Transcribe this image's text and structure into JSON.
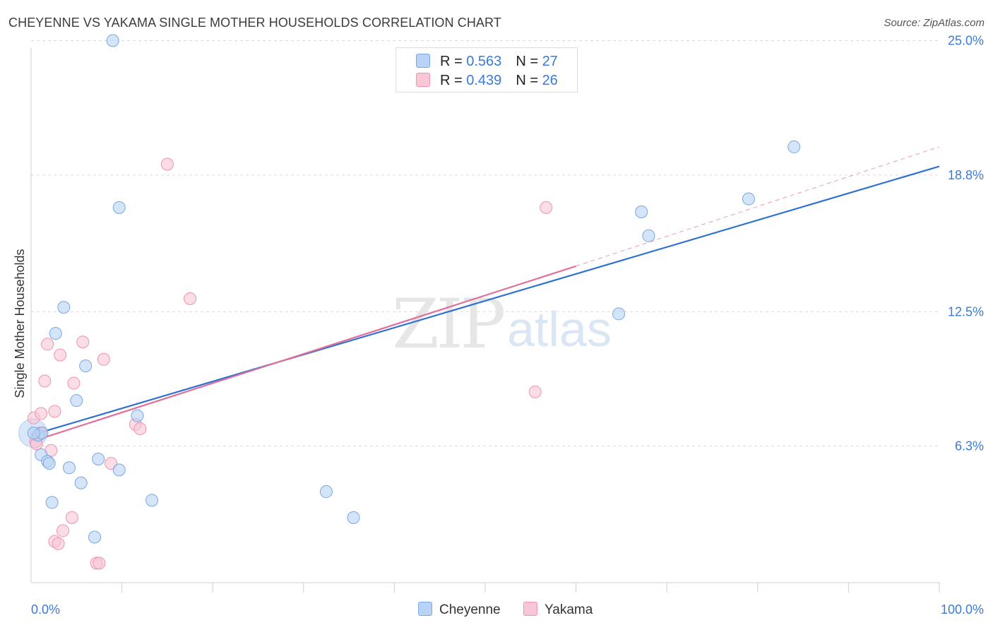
{
  "title": "CHEYENNE VS YAKAMA SINGLE MOTHER HOUSEHOLDS CORRELATION CHART",
  "source": "Source: ZipAtlas.com",
  "watermark": {
    "zip": "ZIP",
    "atlas": "atlas"
  },
  "legend": {
    "cheyenne": {
      "r_label": "R = ",
      "r_value": "0.563",
      "n_label": "N = ",
      "n_value": "27"
    },
    "yakama": {
      "r_label": "R = ",
      "r_value": "0.439",
      "n_label": "N = ",
      "n_value": "26"
    }
  },
  "colors": {
    "cheyenne_fill": "#b8d3f5",
    "cheyenne_stroke": "#7aa7e0",
    "cheyenne_line": "#2f72d0",
    "yakama_fill": "#f9c6d6",
    "yakama_stroke": "#ee93b0",
    "yakama_line": "#e0709a",
    "tick_label": "#3a7bd5",
    "grid": "#d9d9d9"
  },
  "chart_data": {
    "type": "scatter",
    "title": "CHEYENNE VS YAKAMA SINGLE MOTHER HOUSEHOLDS CORRELATION CHART",
    "xlabel": "",
    "ylabel": "Single Mother Households",
    "xlim": [
      0,
      100
    ],
    "ylim": [
      0,
      26
    ],
    "x_tick_labels": [
      "0.0%",
      "100.0%"
    ],
    "y_ticks": [
      6.3,
      12.5,
      18.8,
      25.0
    ],
    "y_tick_labels": [
      "6.3%",
      "12.5%",
      "18.8%",
      "25.0%"
    ],
    "grid": true,
    "series": [
      {
        "name": "Cheyenne",
        "points": [
          [
            0.8,
            6.8
          ],
          [
            1.2,
            6.9
          ],
          [
            1.1,
            5.9
          ],
          [
            1.8,
            5.6
          ],
          [
            2.0,
            5.5
          ],
          [
            2.3,
            3.7
          ],
          [
            2.7,
            11.5
          ],
          [
            3.6,
            12.7
          ],
          [
            4.2,
            5.3
          ],
          [
            5.0,
            8.4
          ],
          [
            5.5,
            4.6
          ],
          [
            6.0,
            10.0
          ],
          [
            7.0,
            2.1
          ],
          [
            7.4,
            5.7
          ],
          [
            9.0,
            25.0
          ],
          [
            9.7,
            5.2
          ],
          [
            9.7,
            17.3
          ],
          [
            11.7,
            7.7
          ],
          [
            13.3,
            3.8
          ],
          [
            32.5,
            4.2
          ],
          [
            35.5,
            3.0
          ],
          [
            64.7,
            12.4
          ],
          [
            67.2,
            17.1
          ],
          [
            68.0,
            16.0
          ],
          [
            79.0,
            17.7
          ],
          [
            84.0,
            20.1
          ],
          [
            0.3,
            6.9
          ]
        ],
        "trend": {
          "x": [
            0,
            100
          ],
          "y": [
            6.8,
            19.2
          ]
        }
      },
      {
        "name": "Yakama",
        "points": [
          [
            0.3,
            7.6
          ],
          [
            0.5,
            6.5
          ],
          [
            1.0,
            6.9
          ],
          [
            1.1,
            7.8
          ],
          [
            1.5,
            9.3
          ],
          [
            1.8,
            11.0
          ],
          [
            2.2,
            6.1
          ],
          [
            2.6,
            7.9
          ],
          [
            2.6,
            1.9
          ],
          [
            3.0,
            1.8
          ],
          [
            3.2,
            10.5
          ],
          [
            3.5,
            2.4
          ],
          [
            4.5,
            3.0
          ],
          [
            4.7,
            9.2
          ],
          [
            5.7,
            11.1
          ],
          [
            7.2,
            0.9
          ],
          [
            7.5,
            0.9
          ],
          [
            8.0,
            10.3
          ],
          [
            8.8,
            5.5
          ],
          [
            11.5,
            7.3
          ],
          [
            12.0,
            7.1
          ],
          [
            15.0,
            19.3
          ],
          [
            17.5,
            13.1
          ],
          [
            55.5,
            8.8
          ],
          [
            56.7,
            17.3
          ],
          [
            0.6,
            6.4
          ]
        ],
        "trend": {
          "x": [
            0,
            60
          ],
          "y": [
            6.5,
            14.6
          ]
        },
        "trend_extension": {
          "x": [
            60,
            100
          ],
          "y": [
            14.6,
            20.1
          ]
        }
      }
    ]
  },
  "bottom_legend": [
    "Cheyenne",
    "Yakama"
  ]
}
